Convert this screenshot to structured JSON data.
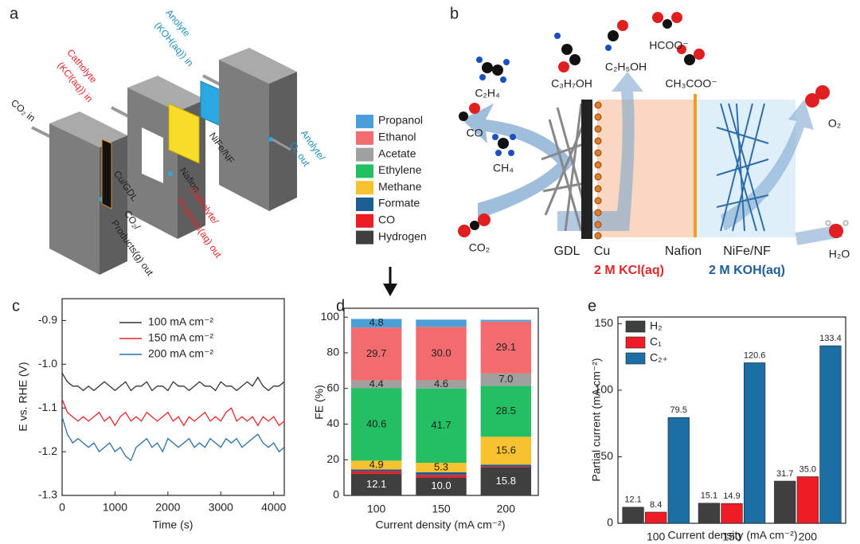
{
  "panel_labels": [
    "a",
    "b",
    "c",
    "d",
    "e"
  ],
  "schematic": {
    "labels": [
      "CO₂ in",
      "Catholyte",
      "(KCl(aq)) in",
      "Anolyte",
      "(KOH(aq)) in",
      "Cu/GDL",
      "Nafion",
      "NiFe/NF",
      "CO₂/",
      "Products(g) out",
      "Catholyte/",
      "Products(aq) out",
      "Anolyte/",
      "O₂ out"
    ]
  },
  "cell": {
    "labels": [
      "C₂H₄",
      "CO",
      "CH₄",
      "C₃H₇OH",
      "C₂H₅OH",
      "HCOO⁻",
      "CH₃COO⁻",
      "CO₂",
      "O₂",
      "H₂O",
      "GDL",
      "Cu",
      "Nafion",
      "NiFe/NF",
      "2 M KCl(aq)",
      "2 M KOH(aq)"
    ]
  },
  "chart_data": [
    {
      "type": "line",
      "x_label": "Time (s)",
      "y_label": "E vs. RHE (V)",
      "x": [
        0,
        100,
        200,
        300,
        400,
        500,
        600,
        700,
        800,
        900,
        1000,
        1100,
        1200,
        1300,
        1400,
        1500,
        1600,
        1700,
        1800,
        1900,
        2000,
        2100,
        2200,
        2300,
        2400,
        2500,
        2600,
        2700,
        2800,
        2900,
        3000,
        3100,
        3200,
        3300,
        3400,
        3500,
        3600,
        3700,
        3800,
        3900,
        4000,
        4100,
        4200
      ],
      "xlim": [
        0,
        4200
      ],
      "xticks": [
        0,
        1000,
        2000,
        3000,
        4000
      ],
      "ylim": [
        -1.3,
        -0.85
      ],
      "yticks": [
        -0.9,
        {
          "value": -1.0,
          "label": "-1.0"
        },
        -1.1,
        -1.2,
        -1.3
      ],
      "series": [
        {
          "name": "100 mA cm⁻²",
          "color": "#333333",
          "values": [
            -1.02,
            -1.04,
            -1.05,
            -1.05,
            -1.06,
            -1.05,
            -1.06,
            -1.05,
            -1.04,
            -1.05,
            -1.06,
            -1.05,
            -1.04,
            -1.06,
            -1.05,
            -1.05,
            -1.04,
            -1.06,
            -1.05,
            -1.05,
            -1.06,
            -1.04,
            -1.05,
            -1.05,
            -1.06,
            -1.05,
            -1.04,
            -1.05,
            -1.05,
            -1.06,
            -1.04,
            -1.05,
            -1.05,
            -1.06,
            -1.05,
            -1.04,
            -1.05,
            -1.03,
            -1.05,
            -1.06,
            -1.05,
            -1.05,
            -1.04
          ]
        },
        {
          "name": "150 mA cm⁻²",
          "color": "#e3262a",
          "values": [
            -1.08,
            -1.11,
            -1.12,
            -1.13,
            -1.12,
            -1.13,
            -1.12,
            -1.11,
            -1.13,
            -1.12,
            -1.14,
            -1.12,
            -1.11,
            -1.13,
            -1.12,
            -1.13,
            -1.11,
            -1.12,
            -1.13,
            -1.12,
            -1.11,
            -1.13,
            -1.12,
            -1.14,
            -1.12,
            -1.13,
            -1.12,
            -1.11,
            -1.13,
            -1.12,
            -1.13,
            -1.11,
            -1.1,
            -1.13,
            -1.12,
            -1.13,
            -1.12,
            -1.14,
            -1.12,
            -1.13,
            -1.12,
            -1.14,
            -1.13
          ]
        },
        {
          "name": "200 mA cm⁻²",
          "color": "#2a6fa8",
          "values": [
            -1.12,
            -1.16,
            -1.18,
            -1.17,
            -1.18,
            -1.19,
            -1.18,
            -1.2,
            -1.19,
            -1.18,
            -1.2,
            -1.19,
            -1.21,
            -1.22,
            -1.19,
            -1.18,
            -1.17,
            -1.19,
            -1.18,
            -1.2,
            -1.17,
            -1.18,
            -1.19,
            -1.18,
            -1.17,
            -1.19,
            -1.18,
            -1.19,
            -1.17,
            -1.18,
            -1.19,
            -1.17,
            -1.18,
            -1.17,
            -1.19,
            -1.18,
            -1.17,
            -1.16,
            -1.18,
            -1.19,
            -1.18,
            -1.2,
            -1.19
          ]
        }
      ]
    },
    {
      "type": "bar",
      "stacked": true,
      "x_label": "Current density (mA cm⁻²)",
      "y_label": "FE (%)",
      "categories": [
        "100",
        "150",
        "200"
      ],
      "ylim": [
        0,
        105
      ],
      "yticks": [
        0,
        20,
        40,
        60,
        80,
        100
      ],
      "series": [
        {
          "name": "Hydrogen",
          "color": "#3f3f3f",
          "values": [
            12.1,
            10.0,
            15.8
          ],
          "value_labels": [
            "12.1",
            "10.0",
            "15.8"
          ]
        },
        {
          "name": "CO",
          "color": "#ee1c24",
          "values": [
            1.5,
            1.5,
            0.5
          ]
        },
        {
          "name": "Formate",
          "color": "#1b5f94",
          "values": [
            1.0,
            1.5,
            1.0
          ]
        },
        {
          "name": "Methane",
          "color": "#f7c22e",
          "values": [
            4.9,
            5.3,
            15.6
          ],
          "value_labels": [
            "4.9",
            "5.3",
            "15.6"
          ]
        },
        {
          "name": "Ethylene",
          "color": "#22c063",
          "values": [
            40.6,
            41.7,
            28.5
          ],
          "value_labels": [
            "40.6",
            "41.7",
            "28.5"
          ]
        },
        {
          "name": "Acetate",
          "color": "#a0a0a0",
          "values": [
            4.4,
            4.6,
            7.0
          ],
          "value_labels": [
            "4.4",
            "4.6",
            "7.0"
          ]
        },
        {
          "name": "Ethanol",
          "color": "#f26b6f",
          "values": [
            29.7,
            30.0,
            29.1
          ],
          "value_labels": [
            "29.7",
            "30.0",
            "29.1"
          ]
        },
        {
          "name": "Propanol",
          "color": "#4a9fd8",
          "values": [
            4.8,
            4.0,
            1.0
          ],
          "value_labels": [
            "4.8",
            null,
            null
          ]
        }
      ]
    },
    {
      "type": "bar",
      "stacked": false,
      "x_label": "Current density (mA cm⁻²)",
      "y_label": "Partial current (mA cm⁻²)",
      "categories": [
        "100",
        "150",
        "200"
      ],
      "ylim": [
        0,
        155
      ],
      "yticks": [
        0,
        50,
        100,
        150
      ],
      "series": [
        {
          "name": "H₂",
          "color": "#404040",
          "values": [
            12.1,
            15.1,
            31.7
          ]
        },
        {
          "name": "C₁",
          "color": "#ee1c24",
          "values": [
            8.4,
            14.9,
            35.0
          ],
          "value_labels": [
            "8.4",
            "14.9",
            "35.0"
          ]
        },
        {
          "name": "C₂₊",
          "color": "#1b6fa5",
          "values": [
            79.5,
            120.6,
            133.4
          ]
        }
      ]
    }
  ]
}
